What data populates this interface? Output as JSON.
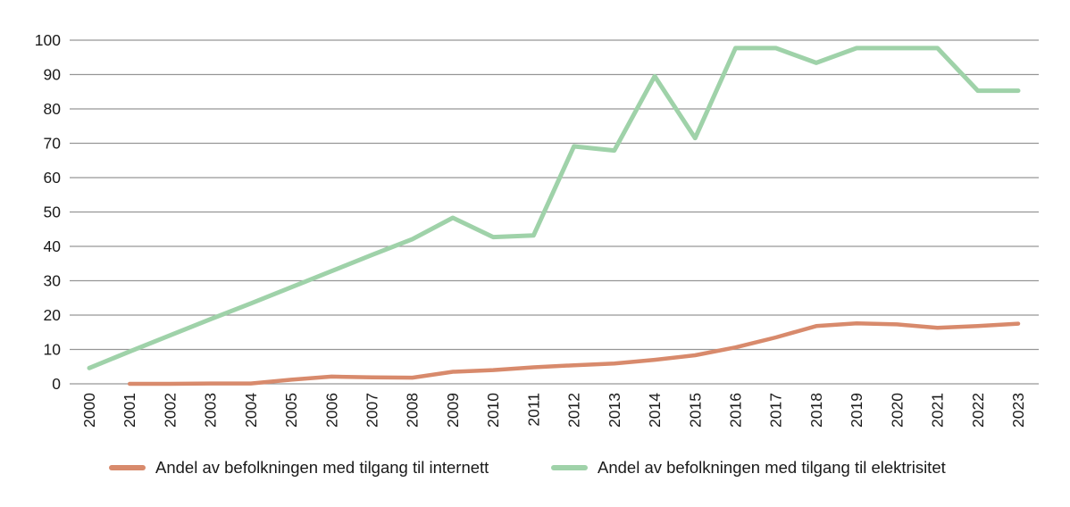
{
  "chart_data": {
    "type": "line",
    "title": "",
    "xlabel": "",
    "ylabel": "",
    "x": [
      2000,
      2001,
      2002,
      2003,
      2004,
      2005,
      2006,
      2007,
      2008,
      2009,
      2010,
      2011,
      2012,
      2013,
      2014,
      2015,
      2016,
      2017,
      2018,
      2019,
      2020,
      2021,
      2022,
      2023
    ],
    "series": [
      {
        "key": "internet-line",
        "name": "Andel av befolkningen med tilgang til internett",
        "color": "#d88a6c",
        "stroke_width": 4.5,
        "values": [
          null,
          0.0,
          0.0,
          0.1,
          0.1,
          1.2,
          2.1,
          1.9,
          1.8,
          3.5,
          4.0,
          4.8,
          5.4,
          5.9,
          7.0,
          8.3,
          10.6,
          13.5,
          16.8,
          17.6,
          17.3,
          16.3,
          16.8,
          17.5
        ]
      },
      {
        "key": "electricity-line",
        "name": "Andel av befolkningen med tilgang til elektrisitet",
        "color": "#9fd2a9",
        "stroke_width": 5,
        "values": [
          4.6,
          9.4,
          14.1,
          18.8,
          23.4,
          28.1,
          32.8,
          37.5,
          42.1,
          48.3,
          42.7,
          43.2,
          69.1,
          67.9,
          89.5,
          71.5,
          97.7,
          97.7,
          93.4,
          97.7,
          97.7,
          97.7,
          85.3,
          85.3
        ]
      }
    ],
    "ylim": [
      0,
      100
    ],
    "yticks": [
      0,
      10,
      20,
      30,
      40,
      50,
      60,
      70,
      80,
      90,
      100
    ],
    "grid": true,
    "gridline_color": "#969696",
    "text_color": "#1a1a1a",
    "legend_position": "bottom"
  }
}
